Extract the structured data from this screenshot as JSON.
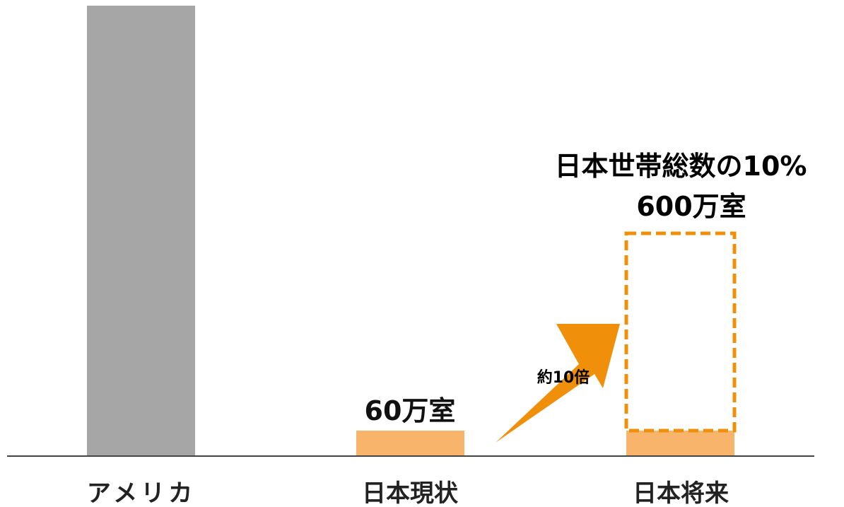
{
  "chart_data": {
    "type": "bar",
    "categories": [
      "アメリカ",
      "日本現状",
      "日本将来"
    ],
    "values": [
      null,
      60,
      600
    ],
    "unit": "万室",
    "data_labels": [
      "",
      "60万室",
      ""
    ],
    "target_label_line1": "日本世帯総数の10%",
    "target_label_line2": "600万室",
    "growth_label": "約10倍",
    "colors": {
      "america": "#a6a6a6",
      "japan": "#f9b46c",
      "target_outline": "#f0900a",
      "arrow": "#f0900a",
      "axis": "#444444"
    }
  }
}
